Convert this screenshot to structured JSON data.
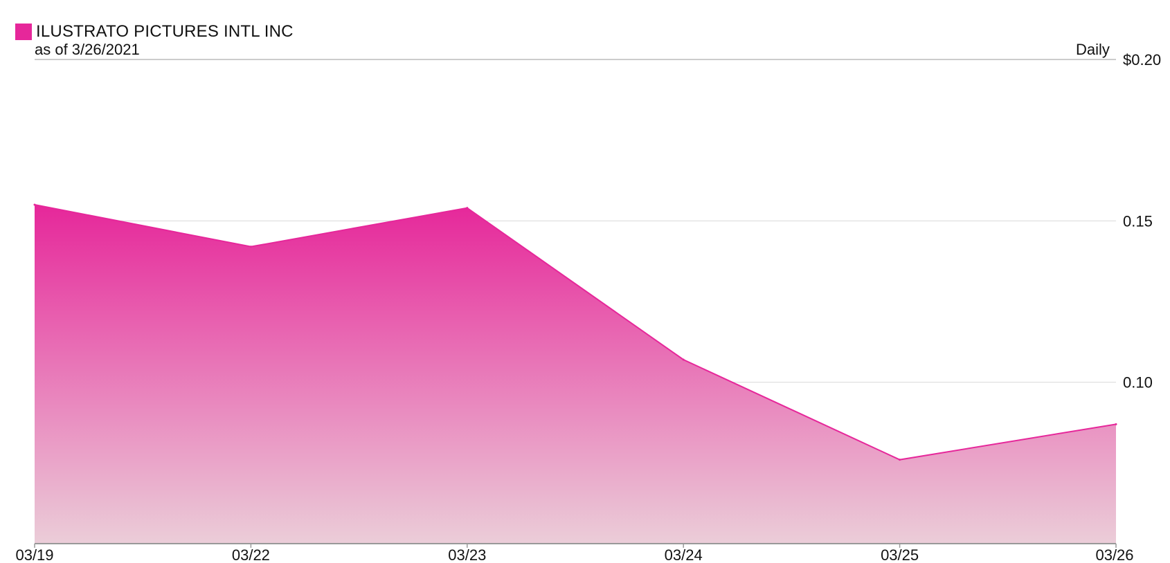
{
  "legend": {
    "name": "ILUSTRATO PICTURES INTL INC",
    "as_of": "as of 3/26/2021",
    "frequency": "Daily"
  },
  "colors": {
    "series": "#e6279a",
    "fill_top": "#e6279a",
    "fill_bottom": "#ebcdd8",
    "grid": "#d9d9d9",
    "axis": "#999999"
  },
  "chart_data": {
    "type": "area",
    "x": [
      "03/19",
      "03/22",
      "03/23",
      "03/24",
      "03/25",
      "03/26"
    ],
    "series": [
      {
        "name": "ILUSTRATO PICTURES INTL INC",
        "values": [
          0.155,
          0.142,
          0.154,
          0.107,
          0.076,
          0.087
        ]
      }
    ],
    "ylim": [
      0.05,
      0.2
    ],
    "yticks": [
      {
        "value": 0.2,
        "label": "$0.20"
      },
      {
        "value": 0.15,
        "label": "0.15"
      },
      {
        "value": 0.1,
        "label": "0.10"
      }
    ],
    "y_axis_side": "right",
    "grid": true,
    "legend_position": "top-left"
  }
}
